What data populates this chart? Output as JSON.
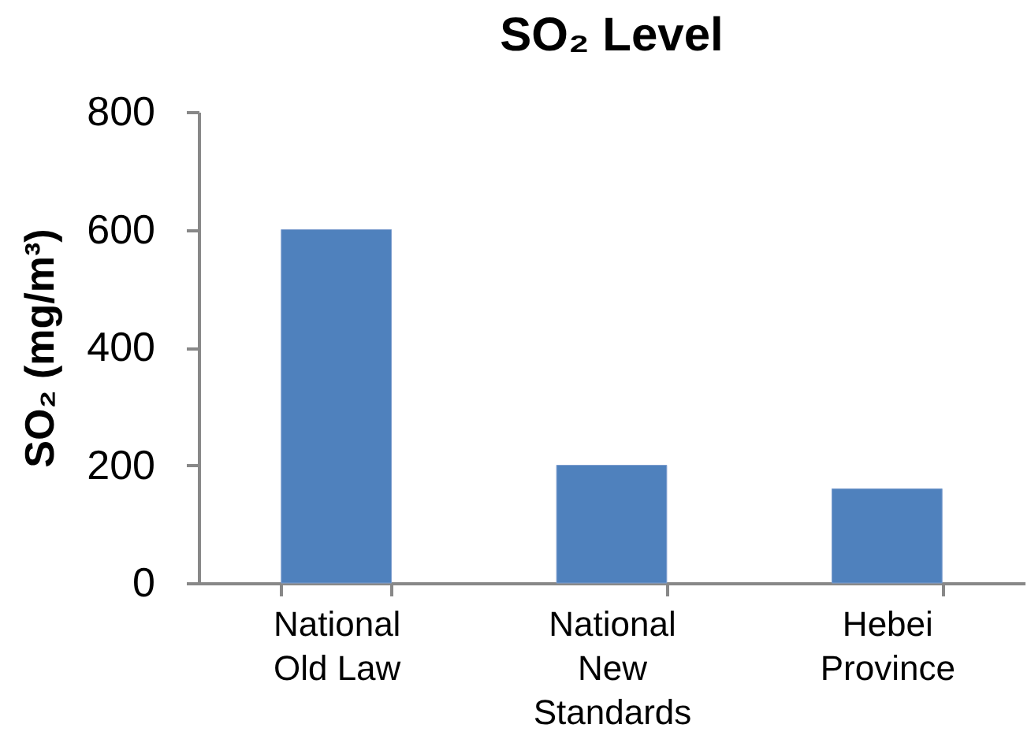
{
  "chart_data": {
    "type": "bar",
    "title": "SO₂ Level",
    "ylabel": "SO₂ (mg/m³)",
    "categories": [
      "National Old Law",
      "National New Standards",
      "Hebei Province"
    ],
    "values": [
      600,
      200,
      160
    ],
    "color": "#4f81bd",
    "ylim": [
      0,
      800
    ],
    "yticks": [
      0,
      200,
      400,
      600,
      800
    ],
    "grid": false
  }
}
